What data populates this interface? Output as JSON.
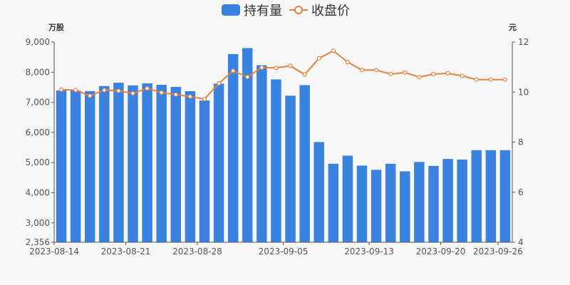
{
  "chart_data": {
    "type": "bar+line",
    "legend": {
      "bar_series": "持有量",
      "line_series": "收盘价",
      "placement": "top-center"
    },
    "y_left": {
      "unit": "万股",
      "min": 2356,
      "max": 9000,
      "ticks": [
        "9,000",
        "8,000",
        "7,000",
        "6,000",
        "5,000",
        "4,000",
        "3,000",
        "2,356"
      ]
    },
    "y_right": {
      "unit": "元",
      "min": 4,
      "max": 12,
      "ticks": [
        "12",
        "10",
        "8",
        "6",
        "4"
      ]
    },
    "x_tick_labels": [
      "2023-08-14",
      "2023-08-21",
      "2023-08-28",
      "2023-09-05",
      "2023-09-13",
      "2023-09-20",
      "2023-09-26"
    ],
    "categories": [
      "2023-08-14",
      "2023-08-15",
      "2023-08-16",
      "2023-08-17",
      "2023-08-18",
      "2023-08-21",
      "2023-08-22",
      "2023-08-23",
      "2023-08-24",
      "2023-08-25",
      "2023-08-28",
      "2023-08-29",
      "2023-08-30",
      "2023-08-31",
      "2023-09-01",
      "2023-09-04",
      "2023-09-05",
      "2023-09-06",
      "2023-09-07",
      "2023-09-08",
      "2023-09-11",
      "2023-09-12",
      "2023-09-13",
      "2023-09-14",
      "2023-09-15",
      "2023-09-18",
      "2023-09-19",
      "2023-09-20",
      "2023-09-21",
      "2023-09-22",
      "2023-09-25",
      "2023-09-26"
    ],
    "series": [
      {
        "name": "持有量",
        "type": "bar",
        "values": [
          7390,
          7390,
          7370,
          7540,
          7650,
          7560,
          7630,
          7580,
          7510,
          7370,
          7060,
          7620,
          8600,
          8800,
          8230,
          7760,
          7220,
          7570,
          5680,
          4960,
          5230,
          4900,
          4760,
          4960,
          4710,
          5020,
          4890,
          5120,
          5100,
          5410,
          5410,
          5410
        ]
      },
      {
        "name": "收盘价",
        "type": "line",
        "values": [
          10.1,
          10.08,
          9.85,
          10.08,
          10.05,
          9.95,
          10.15,
          9.98,
          9.9,
          9.82,
          9.72,
          10.35,
          10.85,
          10.6,
          10.98,
          10.97,
          11.05,
          10.7,
          11.35,
          11.65,
          11.2,
          10.88,
          10.88,
          10.72,
          10.78,
          10.6,
          10.72,
          10.75,
          10.65,
          10.5,
          10.5,
          10.5
        ]
      }
    ],
    "colors": {
      "bar": "#3a82e0",
      "line": "#e8803a",
      "axis": "#555555",
      "background": "#f7f7f7"
    },
    "grid": false
  }
}
